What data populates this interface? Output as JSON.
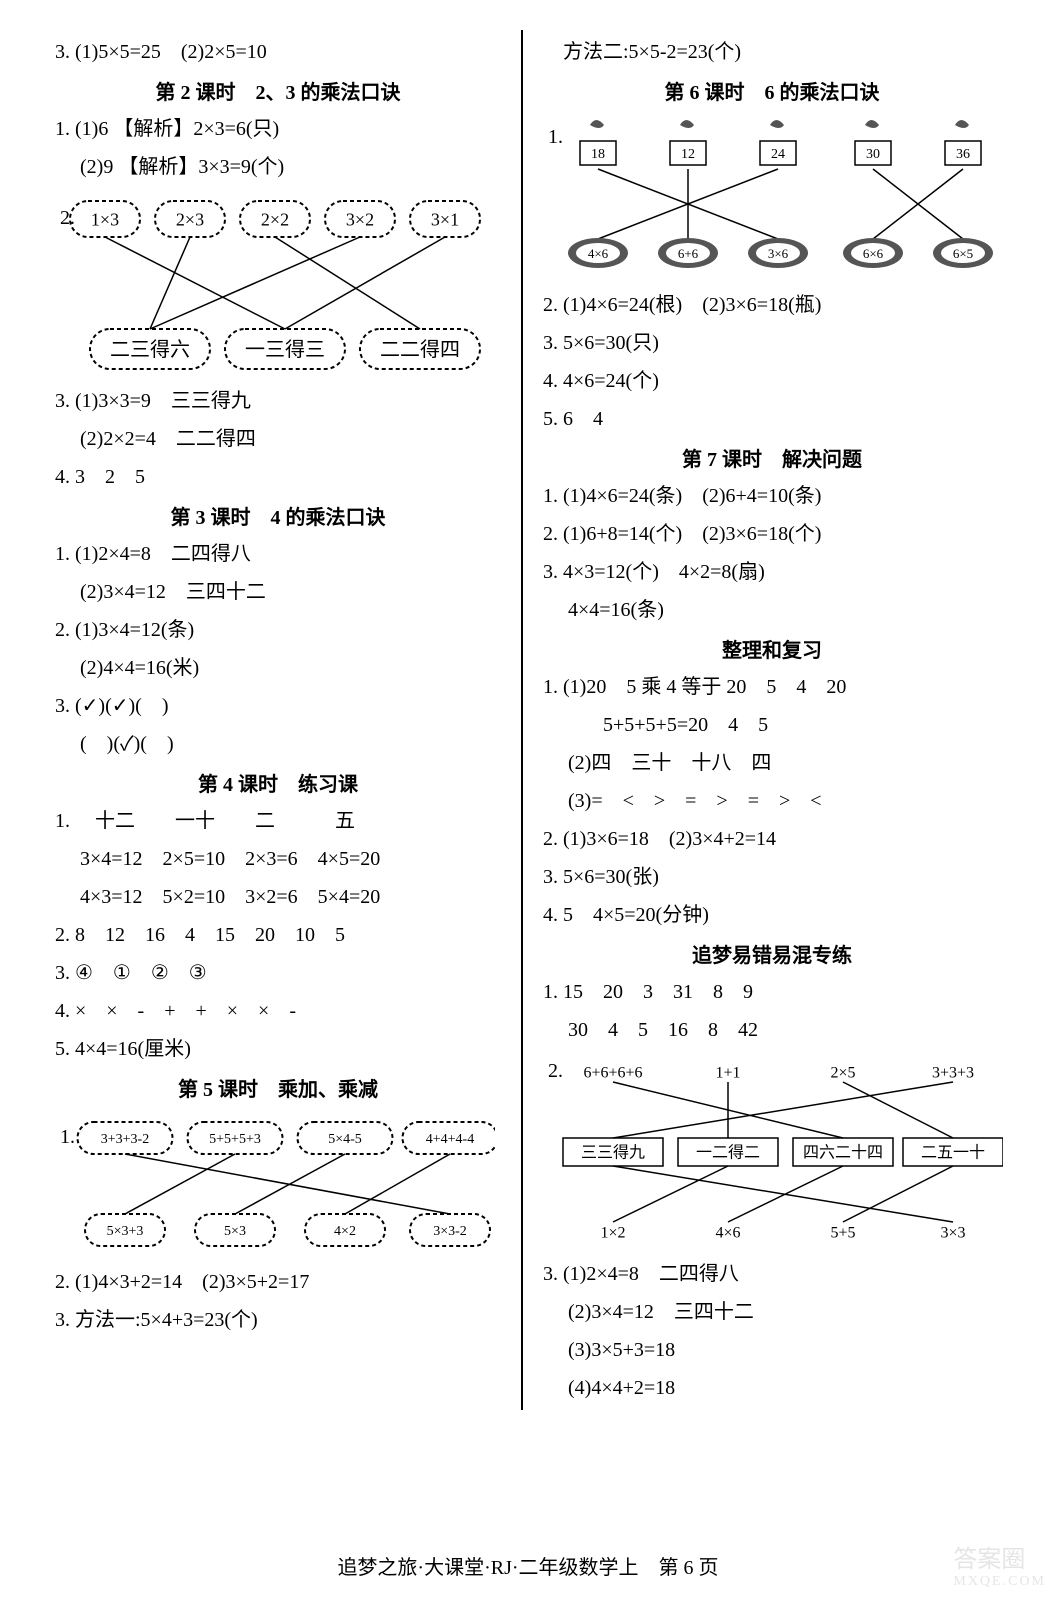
{
  "footer": "追梦之旅·大课堂·RJ·二年级数学上　第 6 页",
  "watermark": {
    "big": "答案圈",
    "small": "MXQE.COM"
  },
  "left": {
    "l3": "3. (1)5×5=25　(2)2×5=10",
    "h2": "第 2 课时　2、3 的乘法口诀",
    "l2_1a": "1. (1)6 【解析】2×3=6(只)",
    "l2_1b": "　 (2)9 【解析】3×3=9(个)",
    "match2": {
      "top": [
        "1×3",
        "2×3",
        "2×2",
        "3×2",
        "3×1"
      ],
      "bot": [
        "二三得六",
        "一三得三",
        "二二得四"
      ],
      "edges": [
        [
          0,
          1
        ],
        [
          1,
          0
        ],
        [
          2,
          2
        ],
        [
          3,
          0
        ],
        [
          4,
          1
        ]
      ],
      "box_stroke": "#000"
    },
    "l2_3a": "3. (1)3×3=9　三三得九",
    "l2_3b": "　 (2)2×2=4　二二得四",
    "l2_4": "4. 3　2　5",
    "h3": "第 3 课时　4 的乘法口诀",
    "l3_1a": "1. (1)2×4=8　二四得八",
    "l3_1b": "　 (2)3×4=12　三四十二",
    "l3_2a": "2. (1)3×4=12(条)",
    "l3_2b": "　 (2)4×4=16(米)",
    "l3_3a": "3. (✓)(✓)(　)",
    "l3_3b": "　 (　)(✓)(　)",
    "h4": "第 4 课时　练习课",
    "l4_1a": "1. 　十二　　一十　　二　　　五",
    "l4_1b": "　 3×4=12　2×5=10　2×3=6　4×5=20",
    "l4_1c": "　 4×3=12　5×2=10　3×2=6　5×4=20",
    "l4_2": "2. 8　12　16　4　15　20　10　5",
    "l4_3": "3. ④　①　②　③",
    "l4_4": "4. ×　×　-　+　+　×　×　-",
    "l4_5": "5. 4×4=16(厘米)",
    "h5": "第 5 课时　乘加、乘减",
    "match5": {
      "top": [
        "3+3+3-2",
        "5+5+5+3",
        "5×4-5",
        "4+4+4-4"
      ],
      "bot": [
        "5×3+3",
        "5×3",
        "4×2",
        "3×3-2"
      ],
      "edges": [
        [
          0,
          3
        ],
        [
          1,
          0
        ],
        [
          2,
          1
        ],
        [
          3,
          2
        ]
      ],
      "box_stroke": "#000"
    },
    "l5_2": "2. (1)4×3+2=14　(2)3×5+2=17",
    "l5_3": "3. 方法一:5×4+3=23(个)"
  },
  "right": {
    "r0": "　方法二:5×5-2=23(个)",
    "h6": "第 6 课时　6 的乘法口诀",
    "match6": {
      "top_vals": [
        "18",
        "12",
        "24",
        "30",
        "36"
      ],
      "bot_vals": [
        "4×6",
        "6+6",
        "3×6",
        "6×6",
        "6×5"
      ],
      "edges": [
        [
          0,
          2
        ],
        [
          1,
          1
        ],
        [
          2,
          0
        ],
        [
          3,
          4
        ],
        [
          4,
          3
        ]
      ]
    },
    "l6_2": "2. (1)4×6=24(根)　(2)3×6=18(瓶)",
    "l6_3": "3. 5×6=30(只)",
    "l6_4": "4. 4×6=24(个)",
    "l6_5": "5. 6　4",
    "h7": "第 7 课时　解决问题",
    "l7_1": "1. (1)4×6=24(条)　(2)6+4=10(条)",
    "l7_2": "2. (1)6+8=14(个)　(2)3×6=18(个)",
    "l7_3a": "3. 4×3=12(个)　4×2=8(扇)",
    "l7_3b": "　 4×4=16(条)",
    "h8": "整理和复习",
    "l8_1a": "1. (1)20　5 乘 4 等于 20　5　4　20",
    "l8_1b": "　　　5+5+5+5=20　4　5",
    "l8_1c": "　 (2)四　三十　十八　四",
    "l8_1d": "　 (3)=　<　>　=　>　=　>　<",
    "l8_2": "2. (1)3×6=18　(2)3×4+2=14",
    "l8_3": "3. 5×6=30(张)",
    "l8_4": "4. 5　4×5=20(分钟)",
    "h9": "追梦易错易混专练",
    "l9_1a": "1. 15　20　3　31　8　9",
    "l9_1b": "　 30　4　5　16　8　42",
    "match9": {
      "top": [
        "6+6+6+6",
        "1+1",
        "2×5",
        "3+3+3"
      ],
      "mid": [
        "三三得九",
        "一二得二",
        "四六二十四",
        "二五一十"
      ],
      "bot": [
        "1×2",
        "4×6",
        "5+5",
        "3×3"
      ],
      "edges_tm": [
        [
          0,
          2
        ],
        [
          1,
          1
        ],
        [
          2,
          3
        ],
        [
          3,
          0
        ]
      ],
      "edges_mb": [
        [
          0,
          3
        ],
        [
          1,
          0
        ],
        [
          2,
          1
        ],
        [
          3,
          2
        ]
      ]
    },
    "l9_3a": "3. (1)2×4=8　二四得八",
    "l9_3b": "　 (2)3×4=12　三四十二",
    "l9_3c": "　 (3)3×5+3=18",
    "l9_3d": "　 (4)4×4+2=18"
  }
}
